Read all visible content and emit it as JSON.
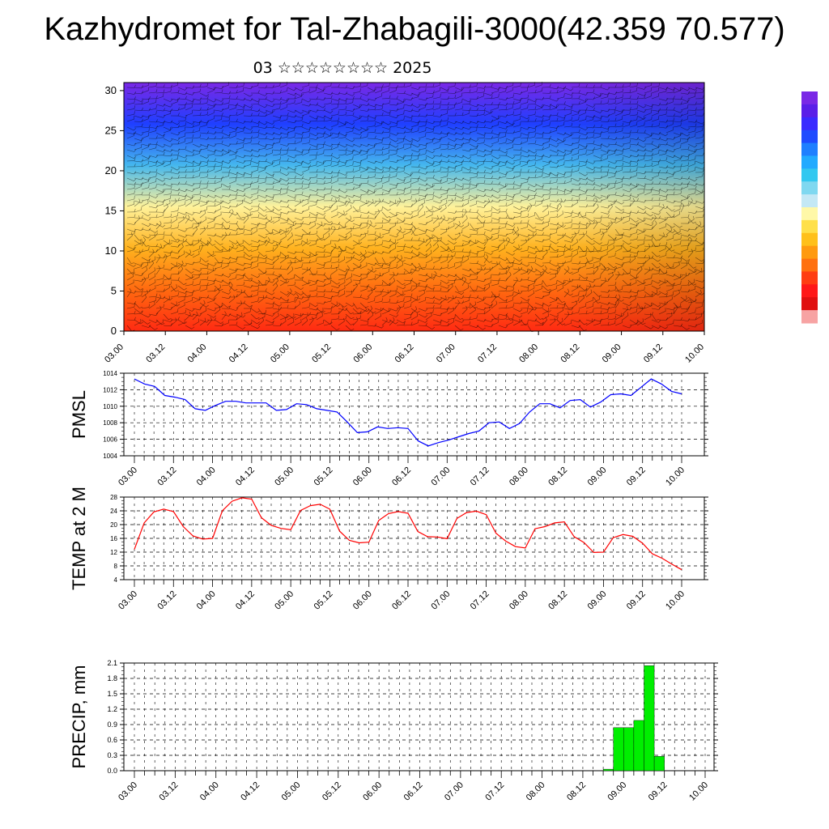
{
  "title": "Kazhydromet for Tal-Zhabagili-3000(42.359 70.577)",
  "subtitle": "03 ☆☆☆☆☆☆☆☆ 2025",
  "colorbar": {
    "colors": [
      "#7a28e6",
      "#5a1fe8",
      "#3a2bff",
      "#1f4bff",
      "#1f7fff",
      "#22aaff",
      "#33c8f0",
      "#7fd8f0",
      "#c4e8f5",
      "#fff8a8",
      "#ffe04a",
      "#ffc01a",
      "#ff9a10",
      "#ff7010",
      "#ff3d12",
      "#ff1818",
      "#e01010",
      "#f7a3a3"
    ]
  },
  "chart_data": [
    {
      "type": "heatmap",
      "ylabel": "",
      "yticks": [
        "0",
        "5",
        "10",
        "15",
        "20",
        "25",
        "30"
      ],
      "ylim": [
        0,
        31
      ],
      "xticks": [
        "03.00",
        "03.12",
        "04.00",
        "04.12",
        "05.00",
        "05.12",
        "06.00",
        "06.12",
        "07.00",
        "07.12",
        "08.00",
        "08.12",
        "09.00",
        "09.12",
        "10.00"
      ],
      "xlim": [
        0,
        14
      ],
      "colors_top_to_bottom": [
        "#7a28e6",
        "#1f3fff",
        "#45b8ee",
        "#fff29a",
        "#ffb21e",
        "#ff6a10",
        "#ff2a12"
      ],
      "description": "height-time section with wind barbs"
    },
    {
      "type": "line",
      "ylabel": "PMSL",
      "ylim": [
        1004,
        1014
      ],
      "yticks": [
        "1004",
        "1006",
        "1008",
        "1010",
        "1012",
        "1014"
      ],
      "xticks": [
        "03.00",
        "03.12",
        "04.00",
        "04.12",
        "05.00",
        "05.12",
        "06.00",
        "06.12",
        "07.00",
        "07.12",
        "08.00",
        "08.12",
        "09.00",
        "09.12",
        "10.00"
      ],
      "color": "#0000ff",
      "values": [
        1013.3,
        1012.7,
        1012.4,
        1011.3,
        1011.1,
        1010.8,
        1009.7,
        1009.5,
        1010.1,
        1010.6,
        1010.6,
        1010.4,
        1010.4,
        1010.4,
        1009.5,
        1009.6,
        1010.3,
        1010.2,
        1009.7,
        1009.5,
        1009.3,
        1008.1,
        1006.8,
        1006.9,
        1007.5,
        1007.3,
        1007.4,
        1007.3,
        1005.8,
        1005.2,
        1005.6,
        1005.9,
        1006.3,
        1006.7,
        1007.0,
        1008.0,
        1008.1,
        1007.3,
        1007.9,
        1009.3,
        1010.3,
        1010.3,
        1009.8,
        1010.7,
        1010.8,
        1009.9,
        1010.5,
        1011.4,
        1011.5,
        1011.3,
        1012.3,
        1013.3,
        1012.7,
        1011.8,
        1011.5
      ]
    },
    {
      "type": "line",
      "ylabel": "TEMP at 2 M",
      "ylim": [
        4,
        28
      ],
      "yticks": [
        "4",
        "8",
        "12",
        "16",
        "20",
        "24",
        "28"
      ],
      "xticks": [
        "03.00",
        "03.12",
        "04.00",
        "04.12",
        "05.00",
        "05.12",
        "06.00",
        "06.12",
        "07.00",
        "07.12",
        "08.00",
        "08.12",
        "09.00",
        "09.12",
        "10.00"
      ],
      "color": "#ff0000",
      "values": [
        12.8,
        20.5,
        23.7,
        24.5,
        23.8,
        19.4,
        16.7,
        15.8,
        16.0,
        24.0,
        26.8,
        27.8,
        27.4,
        22.0,
        19.8,
        18.9,
        18.5,
        24.1,
        25.5,
        25.9,
        24.5,
        18.1,
        15.4,
        14.7,
        14.9,
        21.2,
        23.2,
        23.8,
        23.3,
        18.0,
        16.5,
        16.4,
        15.9,
        21.8,
        23.5,
        23.9,
        22.9,
        17.5,
        15.2,
        13.6,
        13.2,
        18.8,
        19.4,
        20.5,
        20.8,
        16.5,
        14.8,
        11.9,
        12.0,
        16.2,
        17.1,
        16.6,
        14.6,
        11.5,
        10.2,
        8.5,
        6.9
      ]
    },
    {
      "type": "bar",
      "ylabel": "PRECIP, mm",
      "ylim": [
        0,
        2.1
      ],
      "yticks": [
        "0.0",
        "0.3",
        "0.6",
        "0.9",
        "1.2",
        "1.5",
        "1.8",
        "2.1"
      ],
      "xticks": [
        "03.00",
        "03.12",
        "04.00",
        "04.12",
        "05.00",
        "05.12",
        "06.00",
        "06.12",
        "07.00",
        "07.12",
        "08.00",
        "08.12",
        "09.00",
        "09.12",
        "10.00"
      ],
      "color": "#00ee00",
      "bars": [
        {
          "x": 11.75,
          "value": 0.03
        },
        {
          "x": 12.0,
          "value": 0.84
        },
        {
          "x": 12.25,
          "value": 0.84
        },
        {
          "x": 12.5,
          "value": 0.98
        },
        {
          "x": 12.75,
          "value": 2.05
        },
        {
          "x": 13.0,
          "value": 0.28
        }
      ]
    }
  ]
}
